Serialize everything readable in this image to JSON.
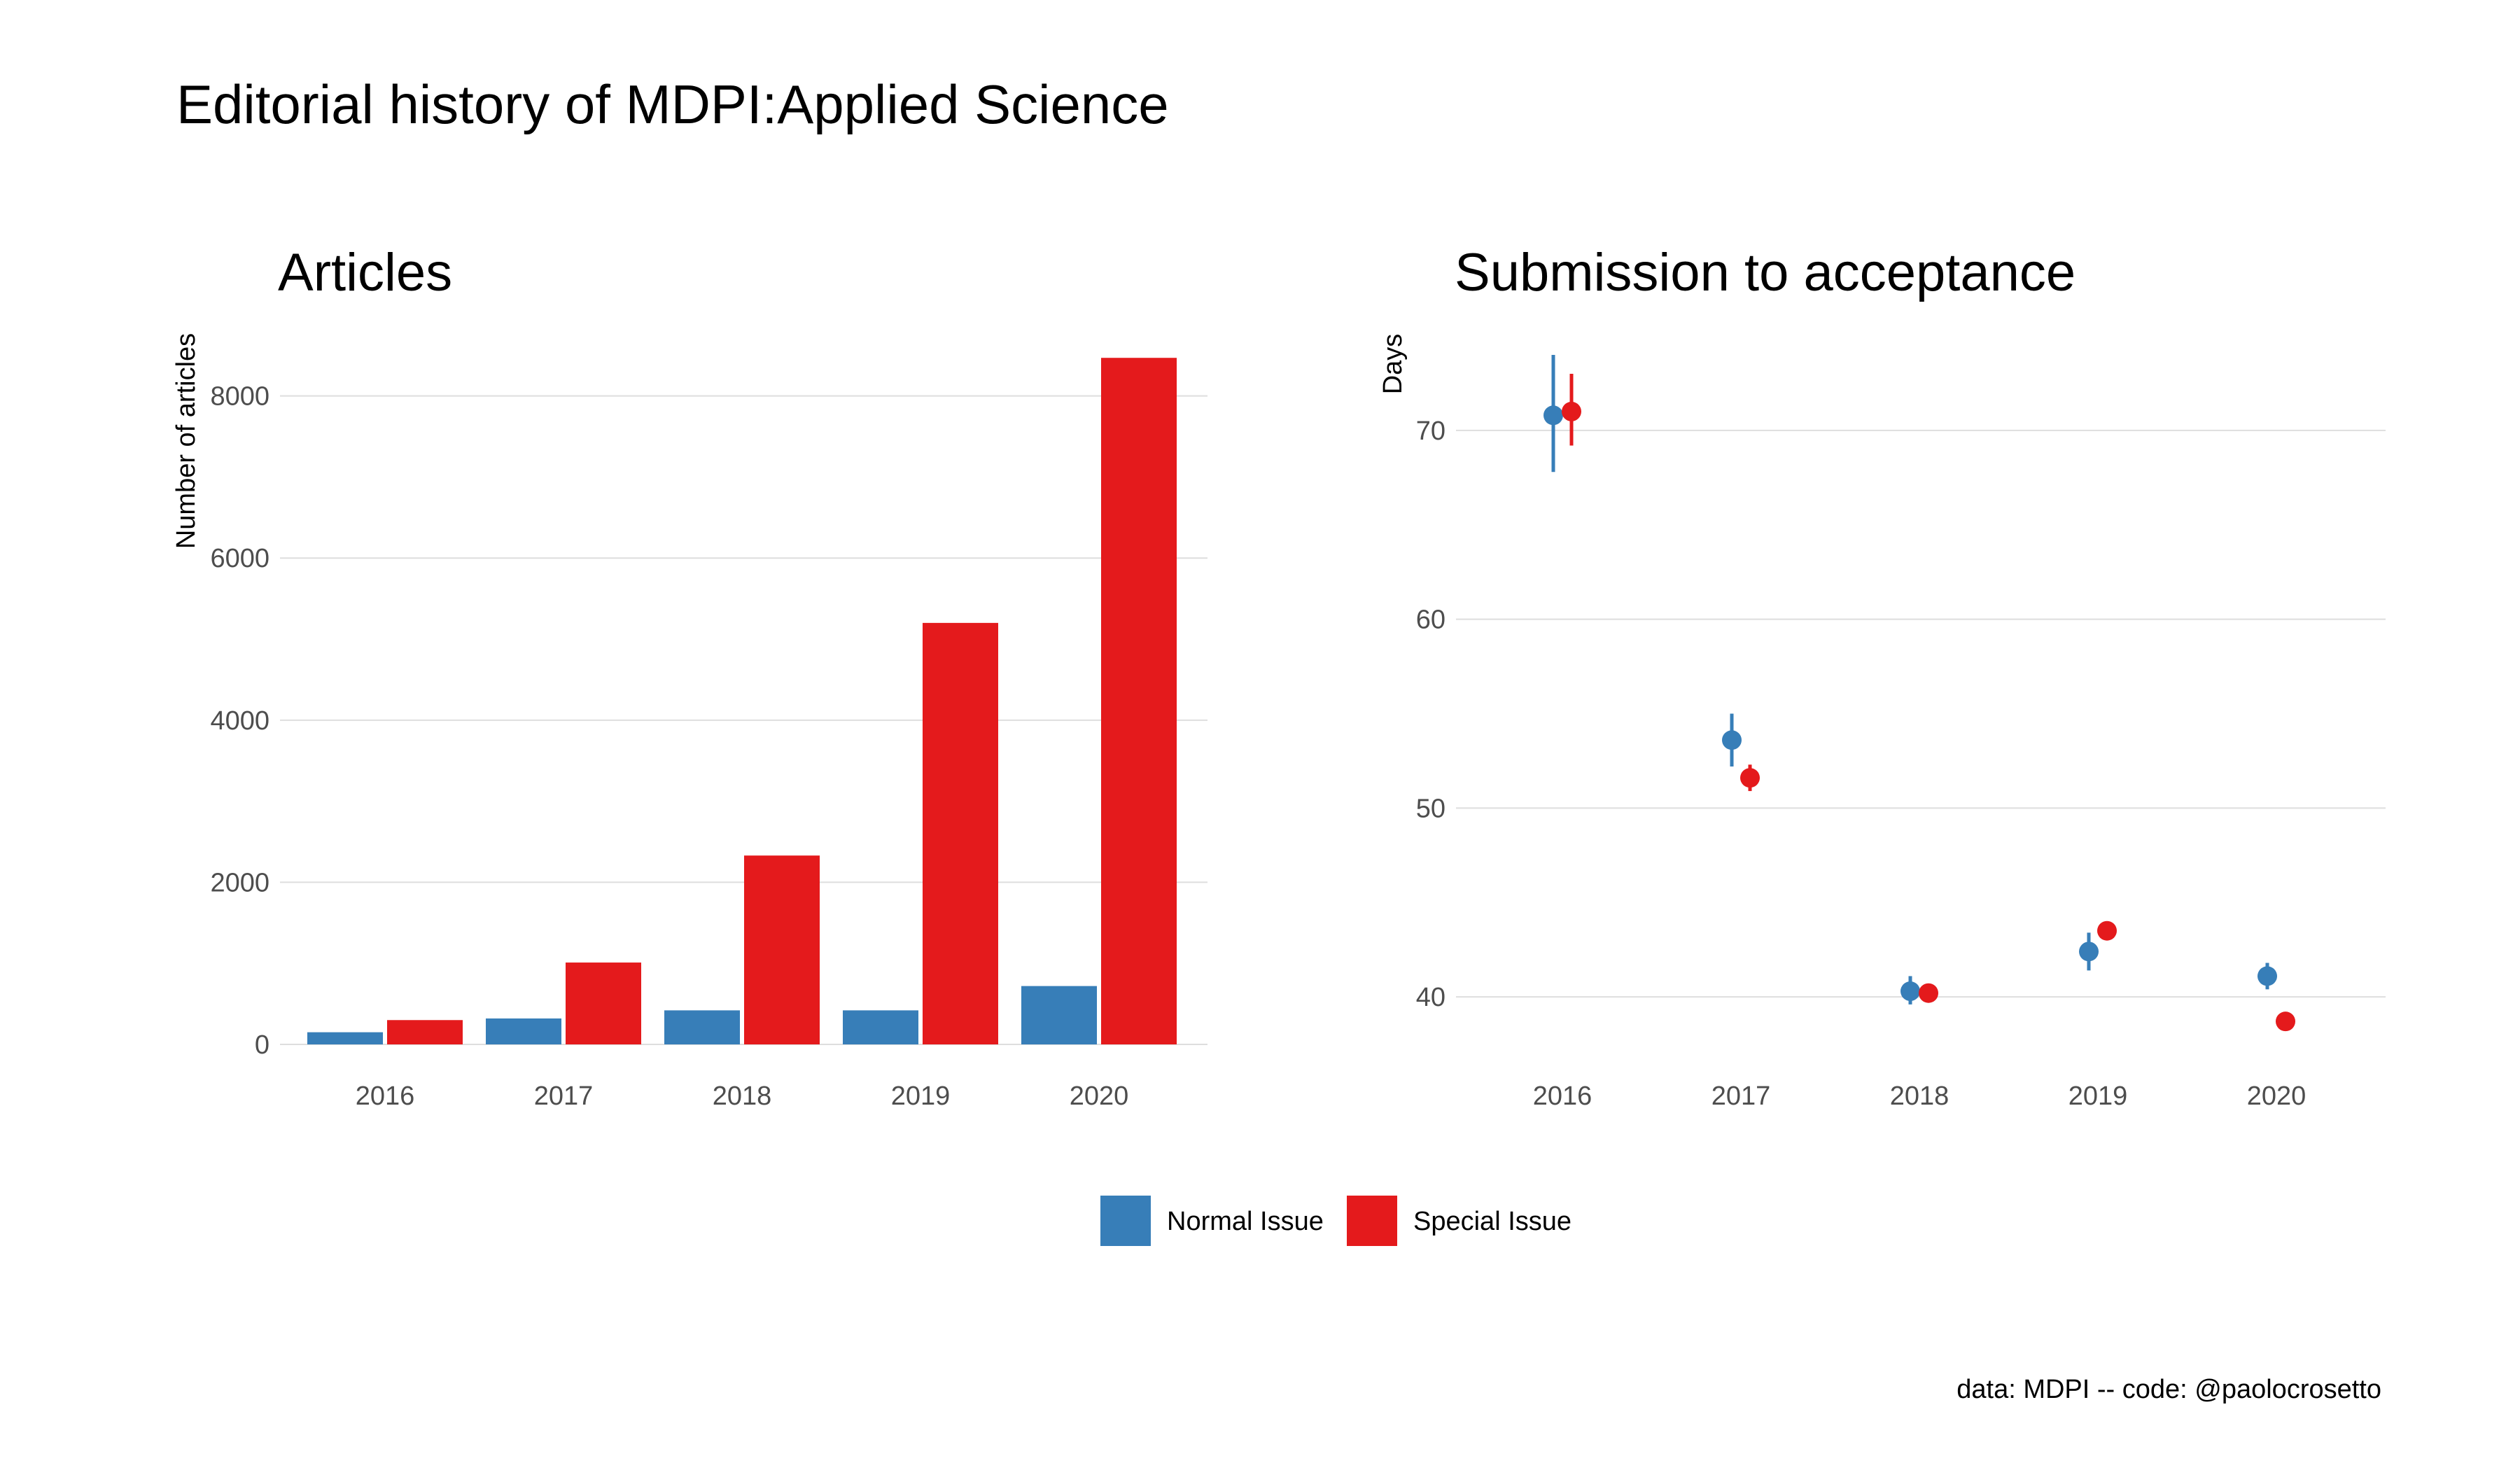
{
  "title": "Editorial history of MDPI:Applied Science",
  "caption": "data: MDPI -- code: @paolocrosetto",
  "colors": {
    "normal": "#377EB8",
    "special": "#E41A1C"
  },
  "legend": {
    "position": "bottom",
    "items": [
      {
        "key": "normal",
        "label": "Normal Issue"
      },
      {
        "key": "special",
        "label": "Special Issue"
      }
    ]
  },
  "chart_data": [
    {
      "type": "bar",
      "title": "Articles",
      "xlabel": "",
      "ylabel": "Number of articles",
      "categories": [
        "2016",
        "2017",
        "2018",
        "2019",
        "2020"
      ],
      "ylim": [
        0,
        8800
      ],
      "yticks": [
        0,
        2000,
        4000,
        6000,
        8000
      ],
      "grid": true,
      "series": [
        {
          "name": "Normal Issue",
          "key": "normal",
          "values": [
            150,
            320,
            420,
            420,
            720
          ]
        },
        {
          "name": "Special Issue",
          "key": "special",
          "values": [
            300,
            1010,
            2330,
            5200,
            8470
          ]
        }
      ]
    },
    {
      "type": "scatter",
      "title": "Submission to acceptance",
      "xlabel": "",
      "ylabel": "Days",
      "categories": [
        "2016",
        "2017",
        "2018",
        "2019",
        "2020"
      ],
      "ylim": [
        36,
        75
      ],
      "yticks": [
        40,
        50,
        60,
        70
      ],
      "grid": true,
      "series": [
        {
          "name": "Normal Issue",
          "key": "normal",
          "values": [
            70.8,
            53.6,
            40.3,
            42.4,
            41.1
          ],
          "lower": [
            67.8,
            52.2,
            39.6,
            41.4,
            40.4
          ],
          "upper": [
            74.0,
            55.0,
            41.1,
            43.4,
            41.8
          ]
        },
        {
          "name": "Special Issue",
          "key": "special",
          "values": [
            71.0,
            51.6,
            40.2,
            43.5,
            38.7
          ],
          "lower": [
            69.2,
            50.9,
            40.0,
            43.3,
            38.6
          ],
          "upper": [
            73.0,
            52.3,
            40.5,
            43.7,
            38.9
          ]
        }
      ]
    }
  ]
}
